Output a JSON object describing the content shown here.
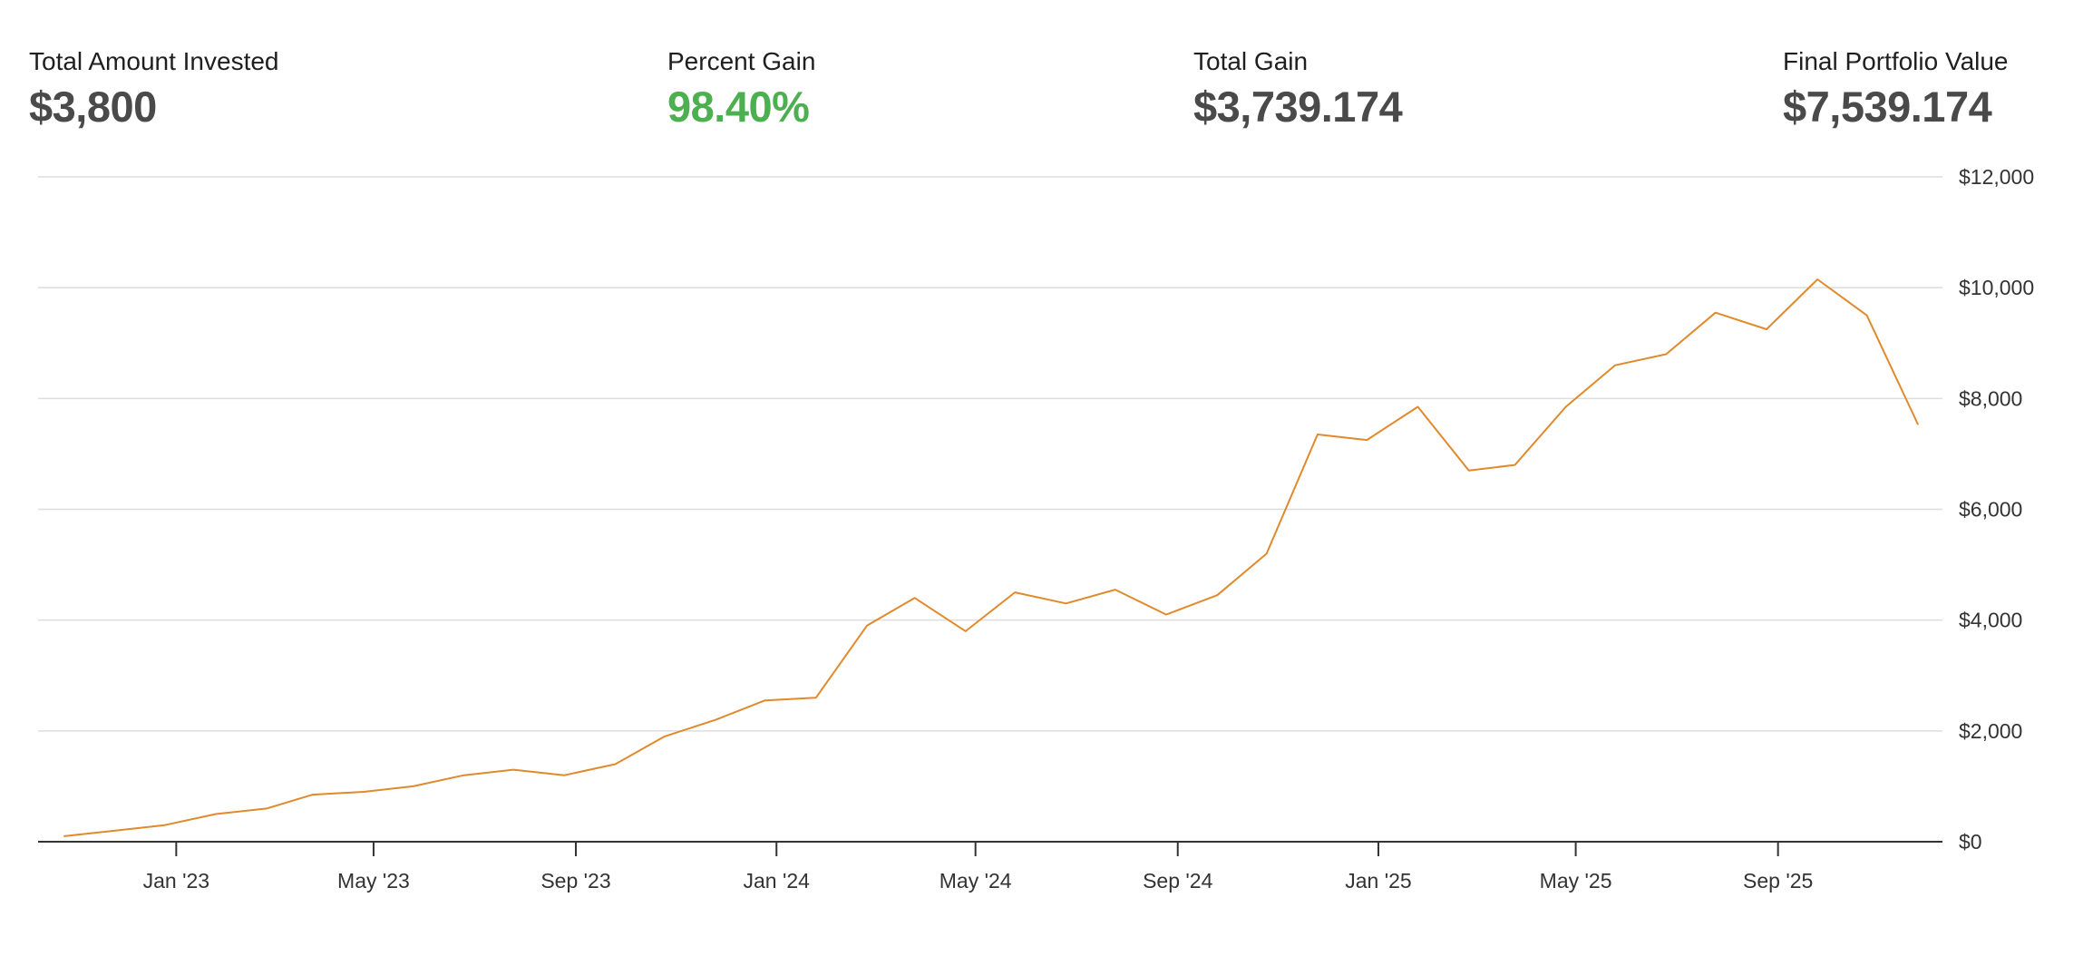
{
  "stats": {
    "invested": {
      "label": "Total Amount Invested",
      "value": "$3,800"
    },
    "percent_gain": {
      "label": "Percent Gain",
      "value": "98.40%"
    },
    "total_gain": {
      "label": "Total Gain",
      "value": "$3,739.174"
    },
    "final_value": {
      "label": "Final Portfolio Value",
      "value": "$7,539.174"
    }
  },
  "colors": {
    "line": "#E08A2C",
    "gain_text": "#4CAF50",
    "grid": "#DDDDDD",
    "axis": "#333333",
    "value_text": "#4A4A4A"
  },
  "chart_data": {
    "type": "line",
    "title": "",
    "xlabel": "",
    "ylabel": "",
    "x": [
      "2022-10-25",
      "2022-11-25",
      "2022-12-25",
      "2023-01-25",
      "2023-02-25",
      "2023-03-25",
      "2023-04-25",
      "2023-05-25",
      "2023-06-25",
      "2023-07-25",
      "2023-08-25",
      "2023-09-25",
      "2023-10-25",
      "2023-11-25",
      "2023-12-25",
      "2024-01-25",
      "2024-02-25",
      "2024-03-25",
      "2024-04-25",
      "2024-05-25",
      "2024-06-25",
      "2024-07-25",
      "2024-08-25",
      "2024-09-25",
      "2024-10-25",
      "2024-11-25",
      "2024-12-25",
      "2025-01-25",
      "2025-02-25",
      "2025-03-25",
      "2025-04-25",
      "2025-05-25",
      "2025-06-25",
      "2025-07-25",
      "2025-08-25",
      "2025-09-25",
      "2025-10-25",
      "2025-11-25"
    ],
    "values": [
      100,
      200,
      300,
      500,
      600,
      850,
      900,
      1000,
      1200,
      1300,
      1200,
      1400,
      1900,
      2200,
      2550,
      2600,
      3900,
      4400,
      3800,
      4500,
      4300,
      4550,
      4100,
      4450,
      5200,
      7350,
      7250,
      7850,
      6700,
      6800,
      7850,
      8600,
      8800,
      9550,
      9250,
      10150,
      9500,
      7539.174
    ],
    "x_ticks": [
      {
        "date": "2023-01-01",
        "label": "Jan '23"
      },
      {
        "date": "2023-05-01",
        "label": "May '23"
      },
      {
        "date": "2023-09-01",
        "label": "Sep '23"
      },
      {
        "date": "2024-01-01",
        "label": "Jan '24"
      },
      {
        "date": "2024-05-01",
        "label": "May '24"
      },
      {
        "date": "2024-09-01",
        "label": "Sep '24"
      },
      {
        "date": "2025-01-01",
        "label": "Jan '25"
      },
      {
        "date": "2025-05-01",
        "label": "May '25"
      },
      {
        "date": "2025-09-01",
        "label": "Sep '25"
      }
    ],
    "y_ticks": [
      {
        "value": 0,
        "label": "$0"
      },
      {
        "value": 2000,
        "label": "$2,000"
      },
      {
        "value": 4000,
        "label": "$4,000"
      },
      {
        "value": 6000,
        "label": "$6,000"
      },
      {
        "value": 8000,
        "label": "$8,000"
      },
      {
        "value": 10000,
        "label": "$10,000"
      },
      {
        "value": 12000,
        "label": "$12,000"
      }
    ],
    "ylim": [
      0,
      12000
    ],
    "xlim": [
      "2022-10-09",
      "2025-12-10"
    ],
    "grid": true,
    "y_axis_side": "right",
    "legend": "none"
  }
}
